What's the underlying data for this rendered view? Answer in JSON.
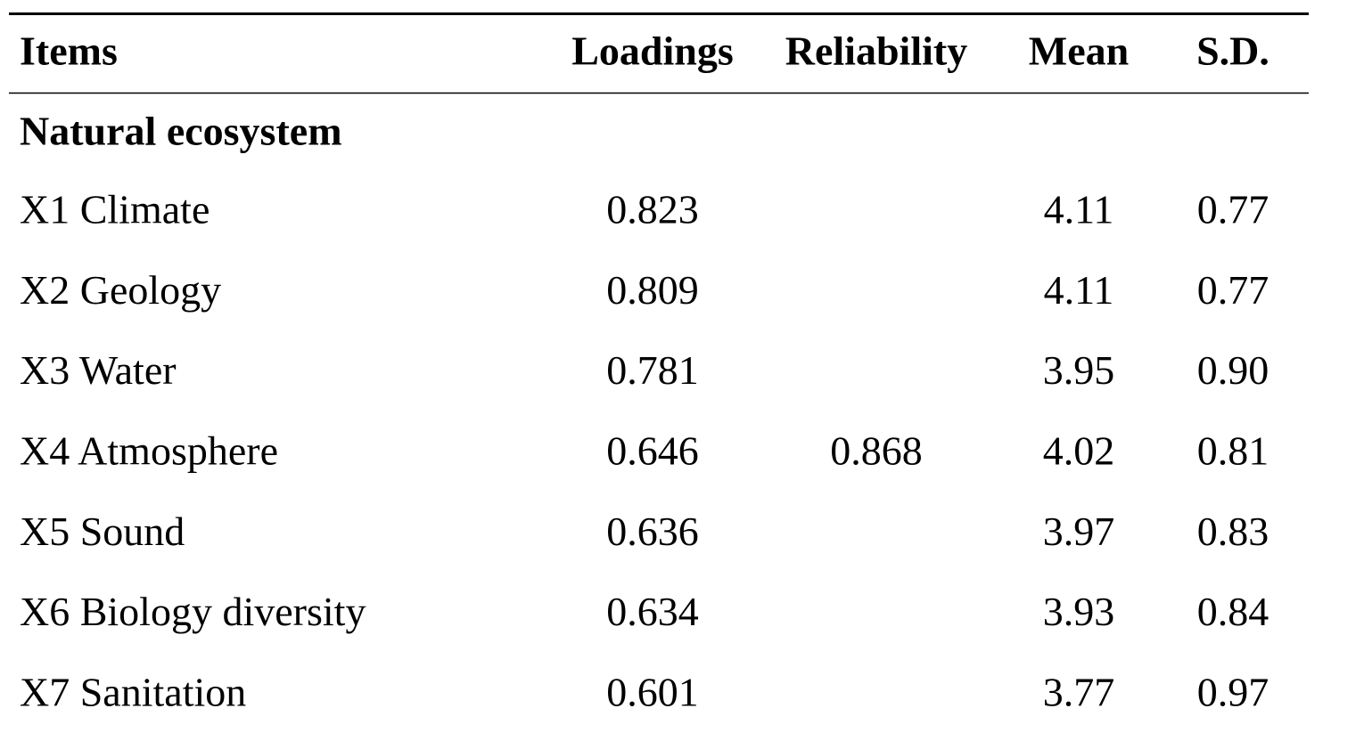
{
  "table": {
    "headers": [
      "Items",
      "Loadings",
      "Reliability",
      "Mean",
      "S.D."
    ],
    "sections": [
      {
        "title": "Natural ecosystem",
        "reliability": "0.868",
        "rows": [
          {
            "item": "X1 Climate",
            "loading": "0.823",
            "mean": "4.11",
            "sd": "0.77"
          },
          {
            "item": "X2 Geology",
            "loading": "0.809",
            "mean": "4.11",
            "sd": "0.77"
          },
          {
            "item": "X3 Water",
            "loading": "0.781",
            "mean": "3.95",
            "sd": "0.90"
          },
          {
            "item": "X4 Atmosphere",
            "loading": "0.646",
            "mean": "4.02",
            "sd": "0.81"
          },
          {
            "item": "X5 Sound",
            "loading": "0.636",
            "mean": "3.97",
            "sd": "0.83"
          },
          {
            "item": "X6 Biology diversity",
            "loading": "0.634",
            "mean": "3.93",
            "sd": "0.84"
          },
          {
            "item": "X7 Sanitation",
            "loading": "0.601",
            "mean": "3.77",
            "sd": "0.97"
          }
        ]
      }
    ]
  }
}
